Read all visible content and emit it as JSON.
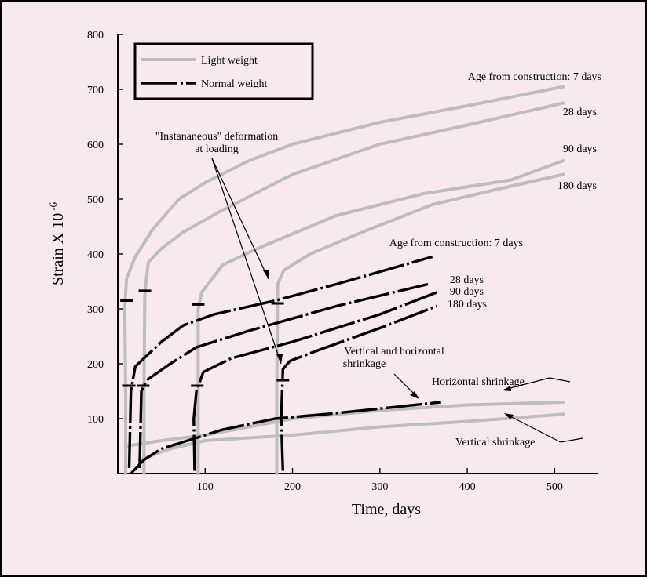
{
  "chart_data": {
    "type": "line",
    "title": "",
    "xlabel": "Time, days",
    "ylabel": "Strain X 10",
    "ylabel_exponent": "-6",
    "xlim": [
      0,
      550
    ],
    "ylim": [
      0,
      800
    ],
    "xticks": [
      100,
      200,
      300,
      400,
      500
    ],
    "yticks": [
      100,
      200,
      300,
      400,
      500,
      600,
      700,
      800
    ],
    "legend": {
      "placement": "top-left",
      "entries": [
        {
          "label": "Light weight",
          "color": "#bdbdbd",
          "style": "solid"
        },
        {
          "label": "Normal weight",
          "color": "#000000",
          "style": "dash-dot"
        }
      ]
    },
    "series": [
      {
        "group": "light",
        "age_days": 7,
        "points": [
          [
            9,
            0
          ],
          [
            9,
            150
          ],
          [
            8,
            300
          ],
          [
            10,
            355
          ],
          [
            20,
            395
          ],
          [
            40,
            445
          ],
          [
            70,
            500
          ],
          [
            100,
            530
          ],
          [
            150,
            570
          ],
          [
            200,
            600
          ],
          [
            300,
            640
          ],
          [
            400,
            670
          ],
          [
            510,
            705
          ]
        ]
      },
      {
        "group": "light",
        "age_days": 28,
        "points": [
          [
            30,
            0
          ],
          [
            30,
            150
          ],
          [
            31,
            330
          ],
          [
            35,
            385
          ],
          [
            50,
            410
          ],
          [
            75,
            440
          ],
          [
            120,
            480
          ],
          [
            200,
            545
          ],
          [
            300,
            600
          ],
          [
            400,
            635
          ],
          [
            510,
            675
          ]
        ]
      },
      {
        "group": "light",
        "age_days": 90,
        "points": [
          [
            92,
            0
          ],
          [
            92,
            150
          ],
          [
            92,
            300
          ],
          [
            96,
            330
          ],
          [
            120,
            380
          ],
          [
            160,
            410
          ],
          [
            250,
            470
          ],
          [
            350,
            510
          ],
          [
            450,
            535
          ],
          [
            510,
            570
          ]
        ]
      },
      {
        "group": "light",
        "age_days": 180,
        "points": [
          [
            182,
            0
          ],
          [
            182,
            150
          ],
          [
            183,
            345
          ],
          [
            190,
            370
          ],
          [
            220,
            400
          ],
          [
            280,
            440
          ],
          [
            360,
            490
          ],
          [
            440,
            520
          ],
          [
            510,
            545
          ]
        ]
      },
      {
        "group": "normal",
        "age_days": 7,
        "points": [
          [
            13,
            10
          ],
          [
            15,
            150
          ],
          [
            20,
            195
          ],
          [
            50,
            240
          ],
          [
            75,
            270
          ],
          [
            110,
            290
          ],
          [
            180,
            315
          ],
          [
            250,
            345
          ],
          [
            360,
            395
          ]
        ]
      },
      {
        "group": "normal",
        "age_days": 28,
        "points": [
          [
            25,
            10
          ],
          [
            27,
            150
          ],
          [
            33,
            170
          ],
          [
            60,
            200
          ],
          [
            90,
            230
          ],
          [
            150,
            260
          ],
          [
            250,
            305
          ],
          [
            355,
            345
          ]
        ]
      },
      {
        "group": "normal",
        "age_days": 90,
        "points": [
          [
            88,
            5
          ],
          [
            87,
            100
          ],
          [
            90,
            150
          ],
          [
            98,
            185
          ],
          [
            130,
            210
          ],
          [
            200,
            240
          ],
          [
            300,
            290
          ],
          [
            365,
            330
          ]
        ]
      },
      {
        "group": "normal",
        "age_days": 180,
        "points": [
          [
            189,
            5
          ],
          [
            187,
            100
          ],
          [
            189,
            190
          ],
          [
            197,
            205
          ],
          [
            230,
            225
          ],
          [
            300,
            265
          ],
          [
            365,
            305
          ]
        ]
      },
      {
        "group": "normal",
        "name": "Vertical and horizontal shrinkage",
        "points": [
          [
            15,
            0
          ],
          [
            30,
            25
          ],
          [
            50,
            45
          ],
          [
            80,
            60
          ],
          [
            120,
            80
          ],
          [
            180,
            100
          ],
          [
            250,
            110
          ],
          [
            370,
            130
          ]
        ]
      },
      {
        "group": "light",
        "name": "Horizontal shrinkage",
        "points": [
          [
            10,
            50
          ],
          [
            50,
            60
          ],
          [
            100,
            70
          ],
          [
            200,
            100
          ],
          [
            300,
            115
          ],
          [
            400,
            125
          ],
          [
            510,
            130
          ]
        ]
      },
      {
        "group": "light",
        "name": "Vertical shrinkage",
        "points": [
          [
            25,
            25
          ],
          [
            60,
            45
          ],
          [
            100,
            60
          ],
          [
            200,
            70
          ],
          [
            300,
            85
          ],
          [
            400,
            95
          ],
          [
            510,
            108
          ]
        ]
      }
    ],
    "markers": [
      [
        10,
        315
      ],
      [
        31,
        333
      ],
      [
        92,
        308
      ],
      [
        183,
        310
      ],
      [
        13,
        160
      ],
      [
        29,
        160
      ],
      [
        91,
        160
      ],
      [
        189,
        170
      ]
    ],
    "annotations": {
      "light_age_header": "Age from construction:  7 days",
      "light_28": "28 days",
      "light_90": "90 days",
      "light_180": "180 days",
      "normal_age_header": "Age from construction:  7 days",
      "normal_28": "28 days",
      "normal_90": "90 days",
      "normal_180": "180 days",
      "inst_line1": "\"Instananeous\" deformation",
      "inst_line2": "at loading",
      "vh_line1": "Vertical and horizontal",
      "vh_line2": "shrinkage",
      "horizontal": "Horizontal shrinkage",
      "vertical": "Vertical shrinkage"
    }
  }
}
